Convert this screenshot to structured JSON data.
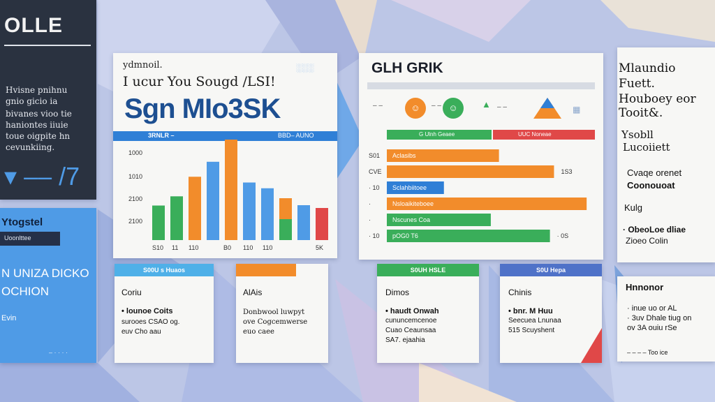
{
  "colors": {
    "dark": "#2a3240",
    "blue": "#4f9be6",
    "orange": "#f28c2b",
    "green": "#3aae5a",
    "red": "#e04848",
    "navy": "#1d4f91",
    "accent_blue": "#2f7fd6"
  },
  "left_panel": {
    "logo": "OLLE",
    "lines": [
      "Hvisne pnihnu",
      "gnio gicio ia",
      "bivanes vioo tie",
      "haniontes iiuie",
      "toue oigpite hn",
      "cevunkiing."
    ],
    "big": "▾ –– /7",
    "blue_title": "Ytogstel",
    "blue_tag": "Uoonlttee",
    "blue_big1": "N UNIZA DICKO",
    "blue_big2": "OCHION",
    "blue_small": "Evin",
    "blue_foot": "– · · · ·"
  },
  "main_card": {
    "eyebrow": "ydmnoil.",
    "subtitle": "I ucur You Sougd /LSI!",
    "title": "Sgn MIo3SK",
    "corner": "░░░",
    "band_label": "3RNLR   –",
    "band_right": "BBD– AUNO",
    "yticks": [
      "1000",
      "1010",
      "2100",
      "2100"
    ],
    "xticks": [
      "S10",
      "11",
      "110",
      "B0",
      "110",
      "110",
      "5K"
    ]
  },
  "chart_data": {
    "type": "bar",
    "categories": [
      "S10",
      "11",
      "110",
      "B0",
      "110",
      "110",
      "5K"
    ],
    "bars": [
      {
        "g": 30,
        "o": 0,
        "b": 0
      },
      {
        "g": 38,
        "o": 0,
        "b": 0
      },
      {
        "g": 0,
        "o": 55,
        "b": 0
      },
      {
        "g": 0,
        "o": 0,
        "b": 68
      },
      {
        "g": 42,
        "o": 52,
        "b": 0
      },
      {
        "g": 0,
        "o": 0,
        "b": 50
      },
      {
        "g": 0,
        "o": 0,
        "b": 45
      }
    ]
  },
  "bar_card": {
    "title": "GLH GRIK",
    "icon_labels": [
      "– –",
      "– –",
      "– –"
    ],
    "legend": [
      "G Ulnh Geaee",
      "UUC Noneae"
    ],
    "rows": [
      {
        "label": "Aclasibs",
        "tick": "S01",
        "value": 55,
        "color": "#f28c2b",
        "end": ""
      },
      {
        "label": "",
        "tick": "CVE",
        "value": 82,
        "color": "#f28c2b",
        "end": "1S3"
      },
      {
        "label": "Sclahbiitoee",
        "tick": "· 10",
        "value": 28,
        "color": "#2f7fd6",
        "end": ""
      },
      {
        "label": "Nsloaikiteboee",
        "tick": "·",
        "value": 98,
        "color": "#f28c2b",
        "end": ""
      },
      {
        "label": "Nscunes Coa",
        "tick": "·",
        "value": 51,
        "color": "#3aae5a",
        "end": ""
      },
      {
        "label": "pOG0 T6",
        "tick": "· 10",
        "value": 80,
        "color": "#3aae5a",
        "end": "· 0S"
      }
    ]
  },
  "side_panel": {
    "head": [
      "Mlaundio",
      "Fuett.",
      "Houboey eor",
      "Tooit&."
    ],
    "sub": [
      "Ysobll",
      "Lucoiiett"
    ],
    "mid": [
      "Cvaqe orenet",
      "Coonouoat"
    ],
    "tag": "Kulg",
    "foot": [
      "· ObeoLoe dliae",
      "Zioeo Colin"
    ]
  },
  "side_panel2": {
    "title": "Hnnonor",
    "lines": [
      "· inue uo or AL",
      "· 3uv  Dhale tiug on",
      "ov 3A ouiu rSe"
    ],
    "foot": "– – – –  Too ice"
  },
  "minis": [
    {
      "head": "S00U s Huaos",
      "title": "Coriu",
      "l1": "• lounoe Coits",
      "l2": "surooes СSAO og.",
      "l3": "euv Cho aau",
      "color": "#4f9be6"
    },
    {
      "head": "",
      "title": "AlAis",
      "l1": "Donbwool  luwpyt",
      "l2": "ove Cogcemwerse",
      "l3": "euo caee",
      "color": "#f28c2b"
    },
    {
      "head": "S0UH  HSLE",
      "title": "Dimos",
      "l1": "• haudt  Onwah",
      "l2": "cununcemcenoe",
      "l3": "Cuao Ceaunsaa",
      "l4": "SA7. ejaahia",
      "color": "#3aae5a"
    },
    {
      "head": "S0U Hepa",
      "title": "Chinis",
      "l1": "• bnr. M Huu",
      "l2": "Seecuea  Lnunaa",
      "l3": "515  Scuyshent",
      "color": "#4f72c8"
    }
  ]
}
